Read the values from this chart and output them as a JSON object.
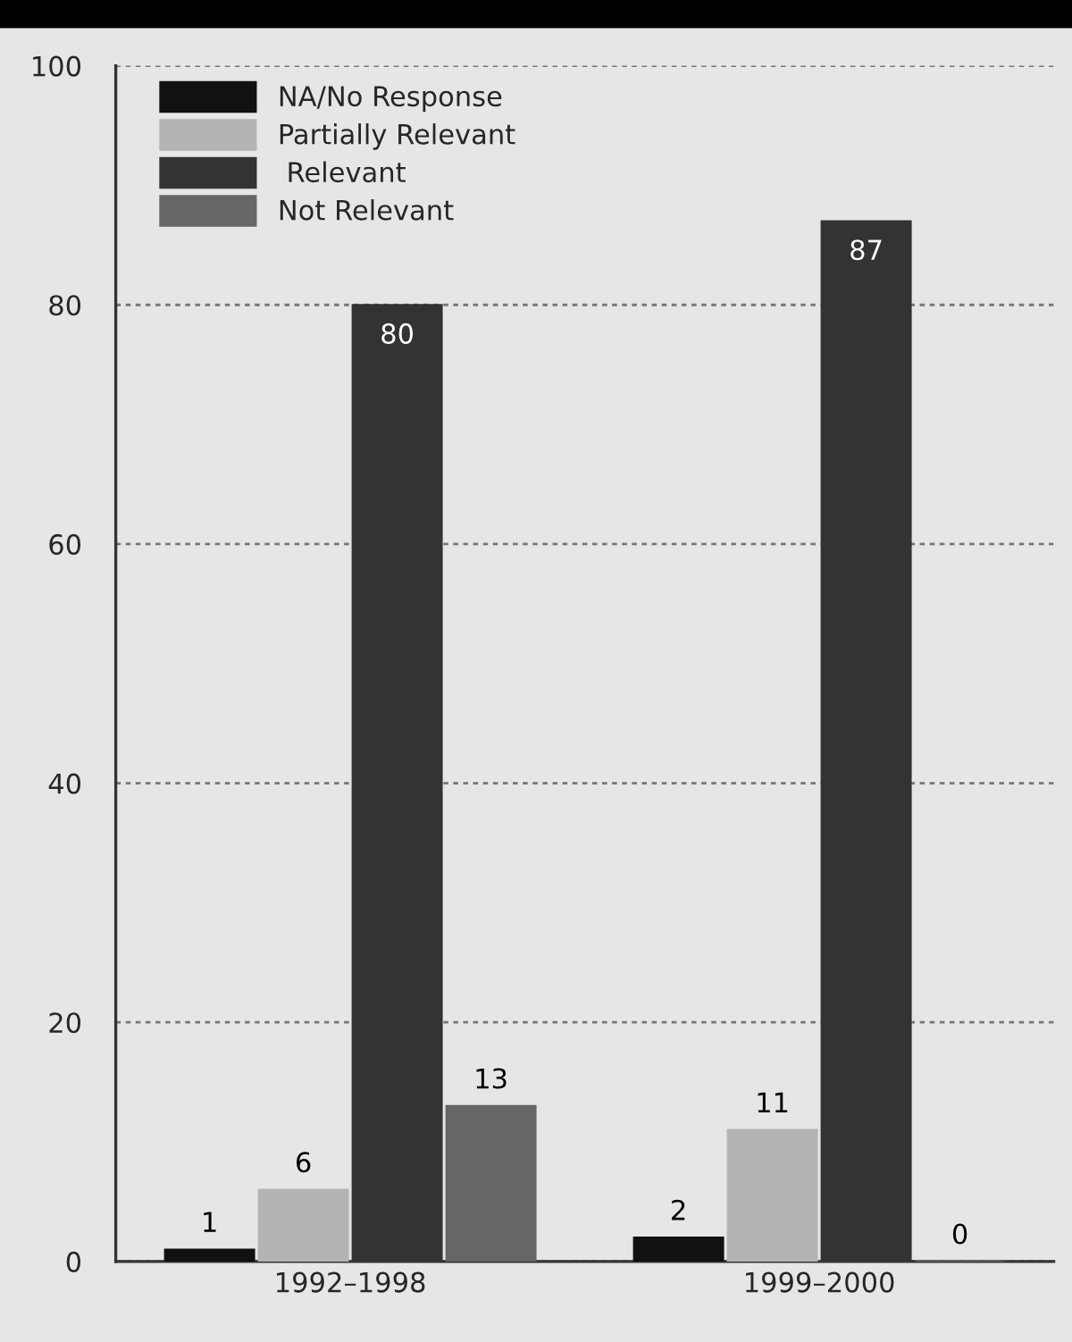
{
  "chart_data": {
    "type": "bar",
    "categories": [
      "1992–1998",
      "1999–2000"
    ],
    "series": [
      {
        "name": "NA/No Response",
        "color": "#111111",
        "values": [
          1,
          2
        ]
      },
      {
        "name": "Partially Relevant",
        "color": "#b4b4b4",
        "values": [
          6,
          11
        ]
      },
      {
        "name": " Relevant",
        "color": "#333333",
        "values": [
          80,
          87
        ]
      },
      {
        "name": "Not Relevant",
        "color": "#666666",
        "values": [
          13,
          0
        ]
      }
    ],
    "ylim": [
      0,
      100
    ],
    "yticks": [
      0,
      20,
      40,
      60,
      80,
      100
    ],
    "grid": "y",
    "legend": "top left",
    "data_labels": true
  }
}
